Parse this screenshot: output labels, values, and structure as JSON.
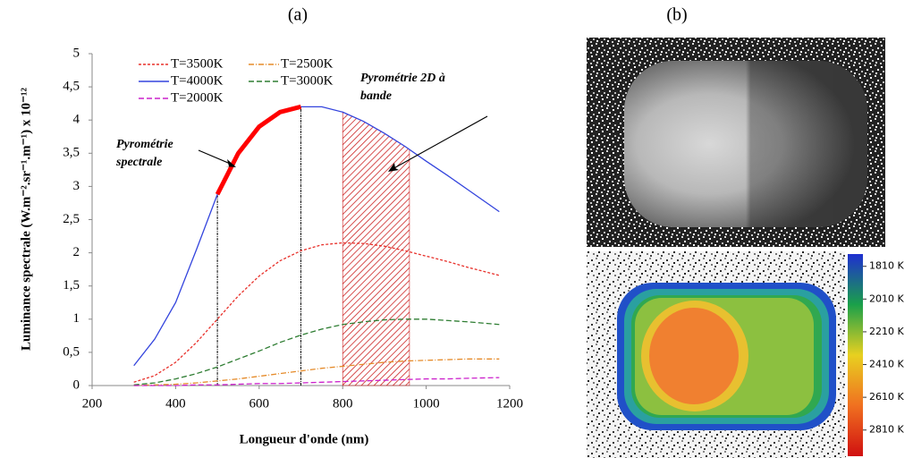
{
  "chart_data": {
    "type": "line",
    "panel_label": "(a)",
    "x_label": "Longueur d'onde (nm)",
    "y_label": "Luminance spectrale (W.m⁻².sr⁻¹.m⁻¹) x 10⁻¹²",
    "x": [
      300,
      350,
      400,
      450,
      500,
      550,
      600,
      650,
      700,
      750,
      800,
      850,
      900,
      950,
      1000,
      1050,
      1100,
      1175
    ],
    "series": [
      {
        "name": "T=3500K",
        "color": "#e8302a",
        "dash": "3,2",
        "values": [
          0.05,
          0.15,
          0.35,
          0.65,
          1.0,
          1.35,
          1.65,
          1.88,
          2.03,
          2.12,
          2.15,
          2.14,
          2.1,
          2.03,
          1.95,
          1.87,
          1.78,
          1.66
        ]
      },
      {
        "name": "T=2500K",
        "color": "#e58b2a",
        "dash": "6,2,1,2",
        "values": [
          0,
          0.01,
          0.02,
          0.04,
          0.07,
          0.1,
          0.14,
          0.18,
          0.22,
          0.26,
          0.29,
          0.32,
          0.35,
          0.37,
          0.38,
          0.39,
          0.4,
          0.4
        ]
      },
      {
        "name": "T=4000K",
        "color": "#3344dd",
        "dash": "none",
        "values": [
          0.3,
          0.7,
          1.25,
          2.05,
          2.88,
          3.5,
          3.9,
          4.12,
          4.2,
          4.2,
          4.12,
          3.98,
          3.8,
          3.6,
          3.38,
          3.17,
          2.95,
          2.62
        ]
      },
      {
        "name": "T=3000K",
        "color": "#2e7d32",
        "dash": "6,3",
        "values": [
          0.01,
          0.04,
          0.1,
          0.18,
          0.28,
          0.4,
          0.52,
          0.65,
          0.76,
          0.85,
          0.92,
          0.96,
          0.99,
          1.0,
          1.0,
          0.98,
          0.96,
          0.92
        ]
      },
      {
        "name": "T=2000K",
        "color": "#cc22cc",
        "dash": "6,3",
        "values": [
          0,
          0,
          0,
          0.01,
          0.01,
          0.02,
          0.03,
          0.03,
          0.04,
          0.05,
          0.06,
          0.07,
          0.08,
          0.09,
          0.1,
          0.1,
          0.11,
          0.12
        ]
      }
    ],
    "annotations": [
      {
        "text": [
          "Pyrométrie",
          "spectrale"
        ],
        "range": [
          500,
          700
        ],
        "style": "highlight",
        "color": "#ff0000"
      },
      {
        "text": [
          "Pyrométrie 2D à",
          "bande"
        ],
        "range": [
          800,
          960
        ],
        "style": "hatch",
        "color": "#cc2222"
      }
    ],
    "xlim": [
      200,
      1200
    ],
    "xticks": [
      200,
      400,
      600,
      800,
      1000,
      1200
    ],
    "ylim": [
      0,
      5
    ],
    "yticks": [
      0,
      {
        "value": 0.5,
        "label": "0,5"
      },
      1,
      {
        "value": 1.5,
        "label": "1,5"
      },
      2,
      {
        "value": 2.5,
        "label": "2,5"
      },
      3,
      {
        "value": 3.5,
        "label": "3,5"
      },
      4,
      {
        "value": 4.5,
        "label": "4,5"
      },
      5
    ],
    "grid": false
  },
  "figure_b": {
    "panel_label": "(b)",
    "colorbar": {
      "lim": [
        1735,
        2970
      ],
      "colors": [
        "#1f2fd0",
        "#1aa04a",
        "#e8d020",
        "#f07020",
        "#d01010"
      ],
      "ticks": [
        {
          "value": 1810,
          "label": "1810 K"
        },
        {
          "value": 2010,
          "label": "2010 K"
        },
        {
          "value": 2210,
          "label": "2210 K"
        },
        {
          "value": 2410,
          "label": "2410 K"
        },
        {
          "value": 2610,
          "label": "2610 K"
        },
        {
          "value": 2810,
          "label": "2810 K"
        }
      ]
    }
  }
}
